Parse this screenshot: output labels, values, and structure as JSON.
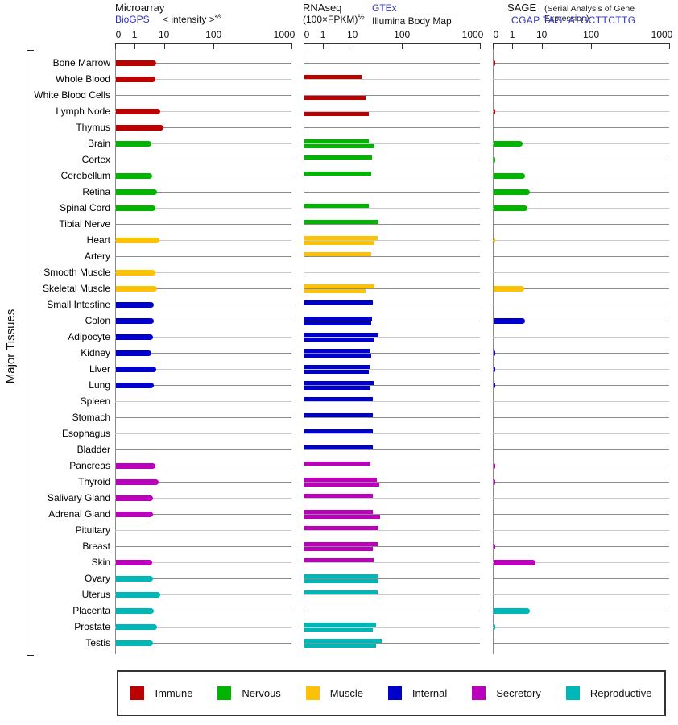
{
  "header": {
    "microarray": {
      "title": "Microarray",
      "link": "BioGPS",
      "scale_prefix": "< intensity >",
      "scale_exp": "⅔"
    },
    "rnaseq": {
      "title": "RNAseq",
      "scale_prefix": "(100×FPKM)",
      "scale_exp": "½",
      "link": "GTEx",
      "sublabel": "Illumina Body Map"
    },
    "sage": {
      "title": "SAGE",
      "subtitle": "(Serial Analysis of Gene Expression)",
      "link": "CGAP TAG: ATGCTTCTTG"
    }
  },
  "side_label": "Major Tissues",
  "legend": {
    "items": [
      {
        "label": "Immune",
        "color": "#bb0000"
      },
      {
        "label": "Nervous",
        "color": "#00b400"
      },
      {
        "label": "Muscle",
        "color": "#fcc203"
      },
      {
        "label": "Internal",
        "color": "#0000cd"
      },
      {
        "label": "Secretory",
        "color": "#bb00bb"
      },
      {
        "label": "Reproductive",
        "color": "#00b7b7"
      }
    ]
  },
  "chart_data": {
    "type": "bar",
    "orientation": "horizontal",
    "x_ticks": [
      0,
      1,
      10,
      100,
      1000
    ],
    "x_scale": "compressed log-style scale, identical for all three panels",
    "panels": [
      {
        "name": "Microarray",
        "source": "BioGPS",
        "scale_label": "< intensity >⅔"
      },
      {
        "name": "RNAseq",
        "scale_label": "(100×FPKM)½",
        "series": [
          "GTEx (upper bar)",
          "Illumina Body Map (lower bar)"
        ]
      },
      {
        "name": "SAGE",
        "note": "(Serial Analysis of Gene Expression)",
        "source": "CGAP TAG: ATGCTTCTTG"
      }
    ],
    "tissues": [
      {
        "label": "Bone Marrow",
        "category": "Immune",
        "microarray": 5,
        "rnaseq_gtex": null,
        "rnaseq_bodymap": null,
        "sage": 0.1
      },
      {
        "label": "Whole Blood",
        "category": "Immune",
        "microarray": 4.8,
        "rnaseq_gtex": 15,
        "rnaseq_bodymap": null,
        "sage": null
      },
      {
        "label": "White Blood Cells",
        "category": "Immune",
        "microarray": null,
        "rnaseq_gtex": null,
        "rnaseq_bodymap": 18,
        "sage": null
      },
      {
        "label": "Lymph Node",
        "category": "Immune",
        "microarray": 7,
        "rnaseq_gtex": null,
        "rnaseq_bodymap": 21,
        "sage": 0.1
      },
      {
        "label": "Thymus",
        "category": "Immune",
        "microarray": 9,
        "rnaseq_gtex": null,
        "rnaseq_bodymap": null,
        "sage": null
      },
      {
        "label": "Brain",
        "category": "Nervous",
        "microarray": 3.5,
        "rnaseq_gtex": 21,
        "rnaseq_bodymap": 27,
        "sage": 2.1
      },
      {
        "label": "Cortex",
        "category": "Nervous",
        "microarray": null,
        "rnaseq_gtex": 24,
        "rnaseq_bodymap": null,
        "sage": 0.1
      },
      {
        "label": "Cerebellum",
        "category": "Nervous",
        "microarray": 3.7,
        "rnaseq_gtex": 23,
        "rnaseq_bodymap": null,
        "sage": 2.6
      },
      {
        "label": "Retina",
        "category": "Nervous",
        "microarray": 5.4,
        "rnaseq_gtex": null,
        "rnaseq_bodymap": null,
        "sage": 3.7
      },
      {
        "label": "Spinal Cord",
        "category": "Nervous",
        "microarray": 4.7,
        "rnaseq_gtex": 21,
        "rnaseq_bodymap": null,
        "sage": 3.0
      },
      {
        "label": "Tibial Nerve",
        "category": "Nervous",
        "microarray": null,
        "rnaseq_gtex": 32,
        "rnaseq_bodymap": null,
        "sage": null
      },
      {
        "label": "Heart",
        "category": "Muscle",
        "microarray": 6.4,
        "rnaseq_gtex": 31,
        "rnaseq_bodymap": 27,
        "sage": 0.1
      },
      {
        "label": "Artery",
        "category": "Muscle",
        "microarray": null,
        "rnaseq_gtex": 23,
        "rnaseq_bodymap": null,
        "sage": null
      },
      {
        "label": "Smooth Muscle",
        "category": "Muscle",
        "microarray": 4.7,
        "rnaseq_gtex": null,
        "rnaseq_bodymap": null,
        "sage": null
      },
      {
        "label": "Skeletal Muscle",
        "category": "Muscle",
        "microarray": 5.4,
        "rnaseq_gtex": 27,
        "rnaseq_bodymap": 18,
        "sage": 2.4
      },
      {
        "label": "Small Intestine",
        "category": "Internal",
        "microarray": 4.2,
        "rnaseq_gtex": 25,
        "rnaseq_bodymap": null,
        "sage": null
      },
      {
        "label": "Colon",
        "category": "Internal",
        "microarray": 4.2,
        "rnaseq_gtex": 24,
        "rnaseq_bodymap": 23,
        "sage": 2.5
      },
      {
        "label": "Adipocyte",
        "category": "Internal",
        "microarray": 4.0,
        "rnaseq_gtex": 32,
        "rnaseq_bodymap": 27,
        "sage": null
      },
      {
        "label": "Kidney",
        "category": "Internal",
        "microarray": 3.5,
        "rnaseq_gtex": 22,
        "rnaseq_bodymap": 23,
        "sage": 0.1
      },
      {
        "label": "Liver",
        "category": "Internal",
        "microarray": 5.1,
        "rnaseq_gtex": 22,
        "rnaseq_bodymap": 21,
        "sage": 0.1
      },
      {
        "label": "Lung",
        "category": "Internal",
        "microarray": 4.2,
        "rnaseq_gtex": 26,
        "rnaseq_bodymap": 22,
        "sage": 0.1
      },
      {
        "label": "Spleen",
        "category": "Internal",
        "microarray": null,
        "rnaseq_gtex": 25,
        "rnaseq_bodymap": null,
        "sage": null
      },
      {
        "label": "Stomach",
        "category": "Internal",
        "microarray": null,
        "rnaseq_gtex": 25,
        "rnaseq_bodymap": null,
        "sage": null
      },
      {
        "label": "Esophagus",
        "category": "Internal",
        "microarray": null,
        "rnaseq_gtex": 25,
        "rnaseq_bodymap": null,
        "sage": null
      },
      {
        "label": "Bladder",
        "category": "Internal",
        "microarray": null,
        "rnaseq_gtex": 25,
        "rnaseq_bodymap": null,
        "sage": null
      },
      {
        "label": "Pancreas",
        "category": "Secretory",
        "microarray": 4.7,
        "rnaseq_gtex": 22,
        "rnaseq_bodymap": null,
        "sage": 0.1
      },
      {
        "label": "Thyroid",
        "category": "Secretory",
        "microarray": 6.2,
        "rnaseq_gtex": 30,
        "rnaseq_bodymap": 34,
        "sage": 0.1
      },
      {
        "label": "Salivary Gland",
        "category": "Secretory",
        "microarray": 4.0,
        "rnaseq_gtex": 25,
        "rnaseq_bodymap": null,
        "sage": null
      },
      {
        "label": "Adrenal Gland",
        "category": "Secretory",
        "microarray": 4.0,
        "rnaseq_gtex": 25,
        "rnaseq_bodymap": 35,
        "sage": null
      },
      {
        "label": "Pituitary",
        "category": "Secretory",
        "microarray": null,
        "rnaseq_gtex": 32,
        "rnaseq_bodymap": null,
        "sage": null
      },
      {
        "label": "Breast",
        "category": "Secretory",
        "microarray": null,
        "rnaseq_gtex": 31,
        "rnaseq_bodymap": 25,
        "sage": 0.1
      },
      {
        "label": "Skin",
        "category": "Secretory",
        "microarray": 3.7,
        "rnaseq_gtex": 26,
        "rnaseq_bodymap": null,
        "sage": 5.8
      },
      {
        "label": "Ovary",
        "category": "Reproductive",
        "microarray": 4.0,
        "rnaseq_gtex": 31,
        "rnaseq_bodymap": 32,
        "sage": null
      },
      {
        "label": "Uterus",
        "category": "Reproductive",
        "microarray": 7,
        "rnaseq_gtex": 31,
        "rnaseq_bodymap": null,
        "sage": null
      },
      {
        "label": "Placenta",
        "category": "Reproductive",
        "microarray": 4.2,
        "rnaseq_gtex": null,
        "rnaseq_bodymap": null,
        "sage": 3.7
      },
      {
        "label": "Prostate",
        "category": "Reproductive",
        "microarray": 5.4,
        "rnaseq_gtex": 29,
        "rnaseq_bodymap": 25,
        "sage": 0.1
      },
      {
        "label": "Testis",
        "category": "Reproductive",
        "microarray": 4.0,
        "rnaseq_gtex": 38,
        "rnaseq_bodymap": 29,
        "sage": null
      }
    ]
  }
}
